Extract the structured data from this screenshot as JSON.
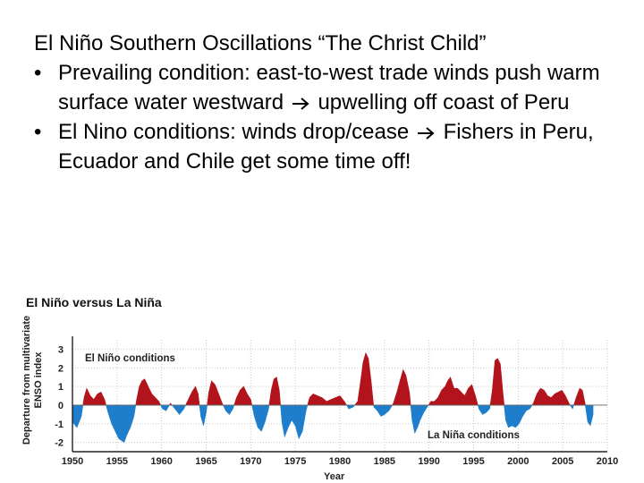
{
  "slide": {
    "title": "El Niño Southern Oscillations “The Christ Child”",
    "bullets": [
      {
        "before": "Prevailing condition: east-to-west trade winds push warm surface water westward",
        "after": "upwelling off coast of Peru"
      },
      {
        "before": "El Nino conditions: winds drop/cease",
        "after": "Fishers in Peru, Ecuador and Chile get some time off!"
      }
    ],
    "bullet_glyph": "•",
    "arrow_icon": "right-arrow-icon"
  },
  "chart_data": {
    "type": "area",
    "title": "El Niño versus La Niña",
    "xlabel": "Year",
    "ylabel_line1": "Departure from multivariate",
    "ylabel_line2": "ENSO index",
    "xlim": [
      1950,
      2010
    ],
    "ylim": [
      -2.5,
      3.5
    ],
    "xticks": [
      1950,
      1955,
      1960,
      1965,
      1970,
      1975,
      1980,
      1985,
      1990,
      1995,
      2000,
      2005,
      2010
    ],
    "yticks": [
      3,
      2,
      1,
      0,
      -1,
      -2
    ],
    "annotations": {
      "positive": "El Niño conditions",
      "negative": "La Niña conditions"
    },
    "colors": {
      "positive": "#b3141b",
      "negative": "#1f7ecb",
      "grid": "#c9c9c9",
      "axis": "#222222"
    },
    "x": [
      1950.0,
      1950.5,
      1951.0,
      1951.3,
      1951.6,
      1952.0,
      1952.4,
      1952.8,
      1953.2,
      1953.6,
      1954.0,
      1954.4,
      1954.8,
      1955.2,
      1955.5,
      1955.8,
      1956.1,
      1956.5,
      1956.9,
      1957.2,
      1957.5,
      1957.8,
      1958.1,
      1958.5,
      1958.9,
      1959.3,
      1959.7,
      1960.1,
      1960.5,
      1961.0,
      1961.5,
      1962.0,
      1962.5,
      1963.0,
      1963.4,
      1963.8,
      1964.1,
      1964.4,
      1964.7,
      1965.0,
      1965.3,
      1965.6,
      1966.0,
      1966.4,
      1966.8,
      1967.2,
      1967.6,
      1968.0,
      1968.4,
      1968.8,
      1969.2,
      1969.6,
      1970.0,
      1970.4,
      1970.8,
      1971.2,
      1971.6,
      1972.0,
      1972.3,
      1972.6,
      1972.9,
      1973.2,
      1973.5,
      1973.8,
      1974.2,
      1974.6,
      1975.0,
      1975.4,
      1975.8,
      1976.2,
      1976.6,
      1977.0,
      1977.5,
      1978.0,
      1978.5,
      1979.0,
      1979.5,
      1980.0,
      1980.5,
      1981.0,
      1981.5,
      1982.0,
      1982.3,
      1982.6,
      1982.9,
      1983.2,
      1983.5,
      1983.8,
      1984.2,
      1984.6,
      1985.0,
      1985.5,
      1986.0,
      1986.4,
      1986.8,
      1987.1,
      1987.4,
      1987.8,
      1988.1,
      1988.4,
      1988.7,
      1989.0,
      1989.4,
      1989.8,
      1990.2,
      1990.6,
      1991.0,
      1991.4,
      1991.8,
      1992.1,
      1992.4,
      1992.8,
      1993.2,
      1993.6,
      1994.0,
      1994.4,
      1994.8,
      1995.2,
      1995.6,
      1996.0,
      1996.4,
      1996.8,
      1997.1,
      1997.4,
      1997.7,
      1998.0,
      1998.3,
      1998.6,
      1998.9,
      1999.3,
      1999.7,
      2000.1,
      2000.5,
      2000.9,
      2001.3,
      2001.7,
      2002.1,
      2002.5,
      2002.9,
      2003.3,
      2003.7,
      2004.1,
      2004.5,
      2004.9,
      2005.3,
      2005.7,
      2006.1,
      2006.5,
      2006.9,
      2007.2,
      2007.5,
      2007.8,
      2008.1,
      2008.4
    ],
    "values": [
      -0.9,
      -1.2,
      -0.6,
      0.4,
      0.9,
      0.5,
      0.3,
      0.6,
      0.7,
      0.3,
      -0.4,
      -1.0,
      -1.4,
      -1.8,
      -1.9,
      -2.0,
      -1.6,
      -1.2,
      -0.6,
      0.3,
      1.0,
      1.3,
      1.4,
      1.0,
      0.6,
      0.4,
      0.2,
      -0.2,
      -0.3,
      0.1,
      -0.2,
      -0.5,
      -0.2,
      0.3,
      0.7,
      1.0,
      0.6,
      -0.6,
      -1.1,
      -0.4,
      0.7,
      1.3,
      1.1,
      0.6,
      0.1,
      -0.3,
      -0.5,
      -0.2,
      0.4,
      0.8,
      1.0,
      0.6,
      0.3,
      -0.6,
      -1.2,
      -1.4,
      -0.9,
      -0.2,
      0.8,
      1.4,
      1.5,
      0.8,
      -0.9,
      -1.7,
      -1.2,
      -0.8,
      -1.1,
      -1.8,
      -1.4,
      -0.3,
      0.4,
      0.6,
      0.5,
      0.4,
      0.2,
      0.3,
      0.4,
      0.5,
      0.2,
      -0.2,
      -0.1,
      0.2,
      1.2,
      2.3,
      2.8,
      2.5,
      1.3,
      -0.1,
      -0.3,
      -0.6,
      -0.5,
      -0.3,
      0.1,
      0.7,
      1.4,
      1.9,
      1.6,
      0.7,
      -0.8,
      -1.5,
      -1.2,
      -0.8,
      -0.4,
      -0.1,
      0.2,
      0.2,
      0.4,
      0.8,
      1.0,
      1.3,
      1.5,
      0.9,
      0.9,
      0.7,
      0.5,
      0.9,
      1.1,
      0.5,
      -0.2,
      -0.5,
      -0.4,
      -0.2,
      0.8,
      2.4,
      2.5,
      2.2,
      0.6,
      -0.8,
      -1.2,
      -1.1,
      -1.2,
      -1.0,
      -0.6,
      -0.3,
      -0.2,
      0.1,
      0.6,
      0.9,
      0.8,
      0.5,
      0.4,
      0.6,
      0.7,
      0.8,
      0.5,
      0.1,
      -0.2,
      0.4,
      0.9,
      0.8,
      0.1,
      -0.9,
      -1.1,
      -0.5
    ]
  }
}
